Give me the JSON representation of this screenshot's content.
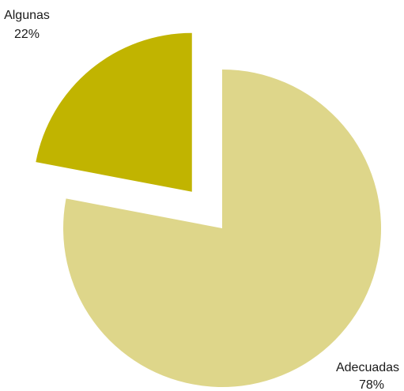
{
  "chart_data": {
    "type": "pie",
    "title": "",
    "categories": [
      "Adecuadas",
      "Algunas"
    ],
    "values": [
      78,
      22
    ],
    "value_labels": [
      "78%",
      "22%"
    ],
    "colors": [
      "#DED68A",
      "#C1B400"
    ],
    "exploded": [
      "Algunas"
    ],
    "start": "12 o'clock",
    "direction": "clockwise"
  }
}
